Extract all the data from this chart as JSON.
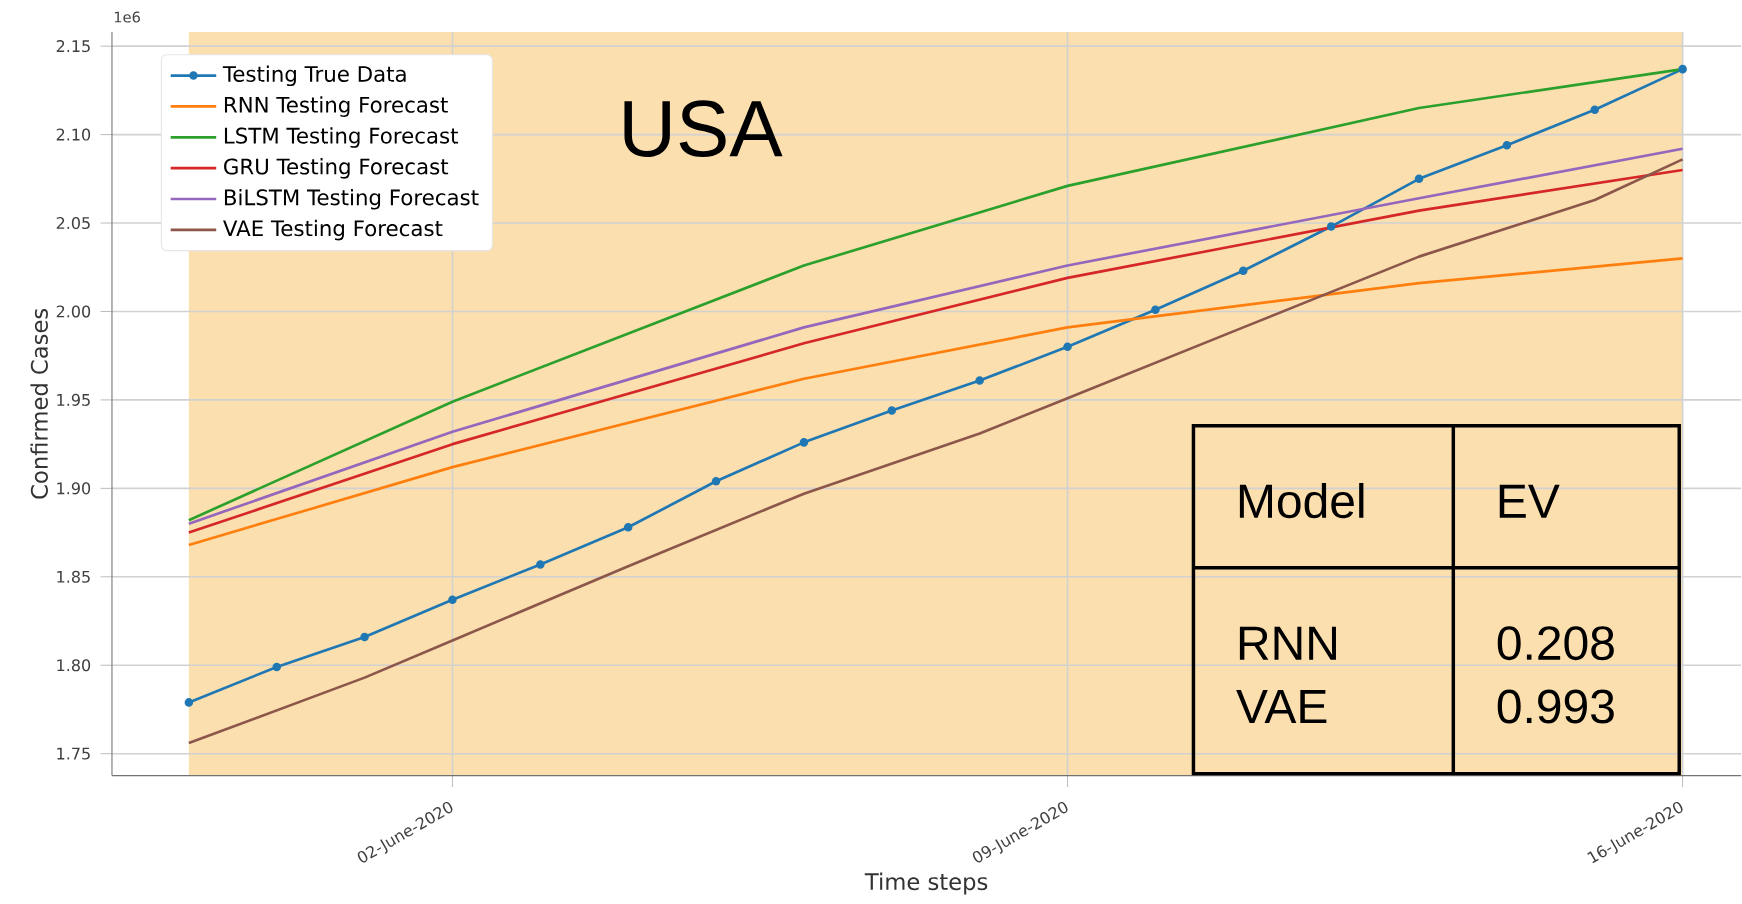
{
  "chart_data": {
    "type": "line",
    "title": "USA",
    "xlabel": "Time steps",
    "ylabel": "Confirmed Cases",
    "x": [
      "2020-05-30",
      "2020-05-31",
      "2020-06-01",
      "2020-06-02",
      "2020-06-03",
      "2020-06-04",
      "2020-06-05",
      "2020-06-06",
      "2020-06-07",
      "2020-06-08",
      "2020-06-09",
      "2020-06-10",
      "2020-06-11",
      "2020-06-12",
      "2020-06-13",
      "2020-06-14",
      "2020-06-15",
      "2020-06-16"
    ],
    "series": [
      {
        "name": "Testing True  Data",
        "color": "#1f77b4",
        "marker": "circle",
        "values": [
          1.779,
          1.799,
          1.816,
          1.837,
          1.857,
          1.878,
          1.904,
          1.926,
          1.944,
          1.961,
          1.98,
          2.001,
          2.023,
          2.048,
          2.075,
          2.094,
          2.114,
          2.137
        ]
      },
      {
        "name": "RNN Testing Forecast",
        "color": "#ff7f0e",
        "x": [
          "2020-05-30",
          "2020-06-02",
          "2020-06-06",
          "2020-06-09",
          "2020-06-13",
          "2020-06-16"
        ],
        "values": [
          1.868,
          1.912,
          1.962,
          1.991,
          2.016,
          2.03
        ]
      },
      {
        "name": "LSTM Testing Forecast",
        "color": "#2ca02c",
        "x": [
          "2020-05-30",
          "2020-06-02",
          "2020-06-06",
          "2020-06-09",
          "2020-06-13",
          "2020-06-16"
        ],
        "values": [
          1.882,
          1.949,
          2.026,
          2.071,
          2.115,
          2.137
        ]
      },
      {
        "name": "GRU Testing Forecast",
        "color": "#d62728",
        "x": [
          "2020-05-30",
          "2020-06-02",
          "2020-06-06",
          "2020-06-09",
          "2020-06-13",
          "2020-06-16"
        ],
        "values": [
          1.875,
          1.925,
          1.982,
          2.019,
          2.057,
          2.08
        ]
      },
      {
        "name": "BiLSTM Testing Forecast",
        "color": "#9467bd",
        "x": [
          "2020-05-30",
          "2020-06-02",
          "2020-06-06",
          "2020-06-09",
          "2020-06-13",
          "2020-06-16"
        ],
        "values": [
          1.88,
          1.932,
          1.991,
          2.026,
          2.064,
          2.092
        ]
      },
      {
        "name": "VAE Testing Forecast",
        "color": "#8c564b",
        "x": [
          "2020-05-30",
          "2020-06-01",
          "2020-06-02",
          "2020-06-04",
          "2020-06-06",
          "2020-06-08",
          "2020-06-09",
          "2020-06-11",
          "2020-06-13",
          "2020-06-15",
          "2020-06-16"
        ],
        "values": [
          1.756,
          1.793,
          1.814,
          1.856,
          1.897,
          1.931,
          1.951,
          1.991,
          2.031,
          2.063,
          2.086
        ]
      }
    ],
    "xlim": [
      "2020-05-29T03:00",
      "2020-06-16T16:00"
    ],
    "xticks": [
      {
        "value": "2020-06-02",
        "label": "02-June-2020"
      },
      {
        "value": "2020-06-09",
        "label": "09-June-2020"
      },
      {
        "value": "2020-06-16",
        "label": "16-June-2020"
      }
    ],
    "ylim": [
      1.7376,
      2.158
    ],
    "yticks": [
      1.75,
      {
        "value": 1.8,
        "label": "1.80"
      },
      1.85,
      {
        "value": 1.9,
        "label": "1.90"
      },
      1.95,
      {
        "value": 2.0,
        "label": "2.00"
      },
      2.05,
      {
        "value": 2.1,
        "label": "2.10"
      },
      2.15
    ],
    "bands": [
      {
        "axis": "x",
        "from": "2020-05-30",
        "to": "2020-06-16",
        "color": "#fbdfae"
      }
    ],
    "grid": true,
    "legend": "top left",
    "annotations": [
      "1e6",
      "Model",
      "EV",
      "RNN",
      "0.208",
      "VAE",
      "0.993"
    ]
  }
}
